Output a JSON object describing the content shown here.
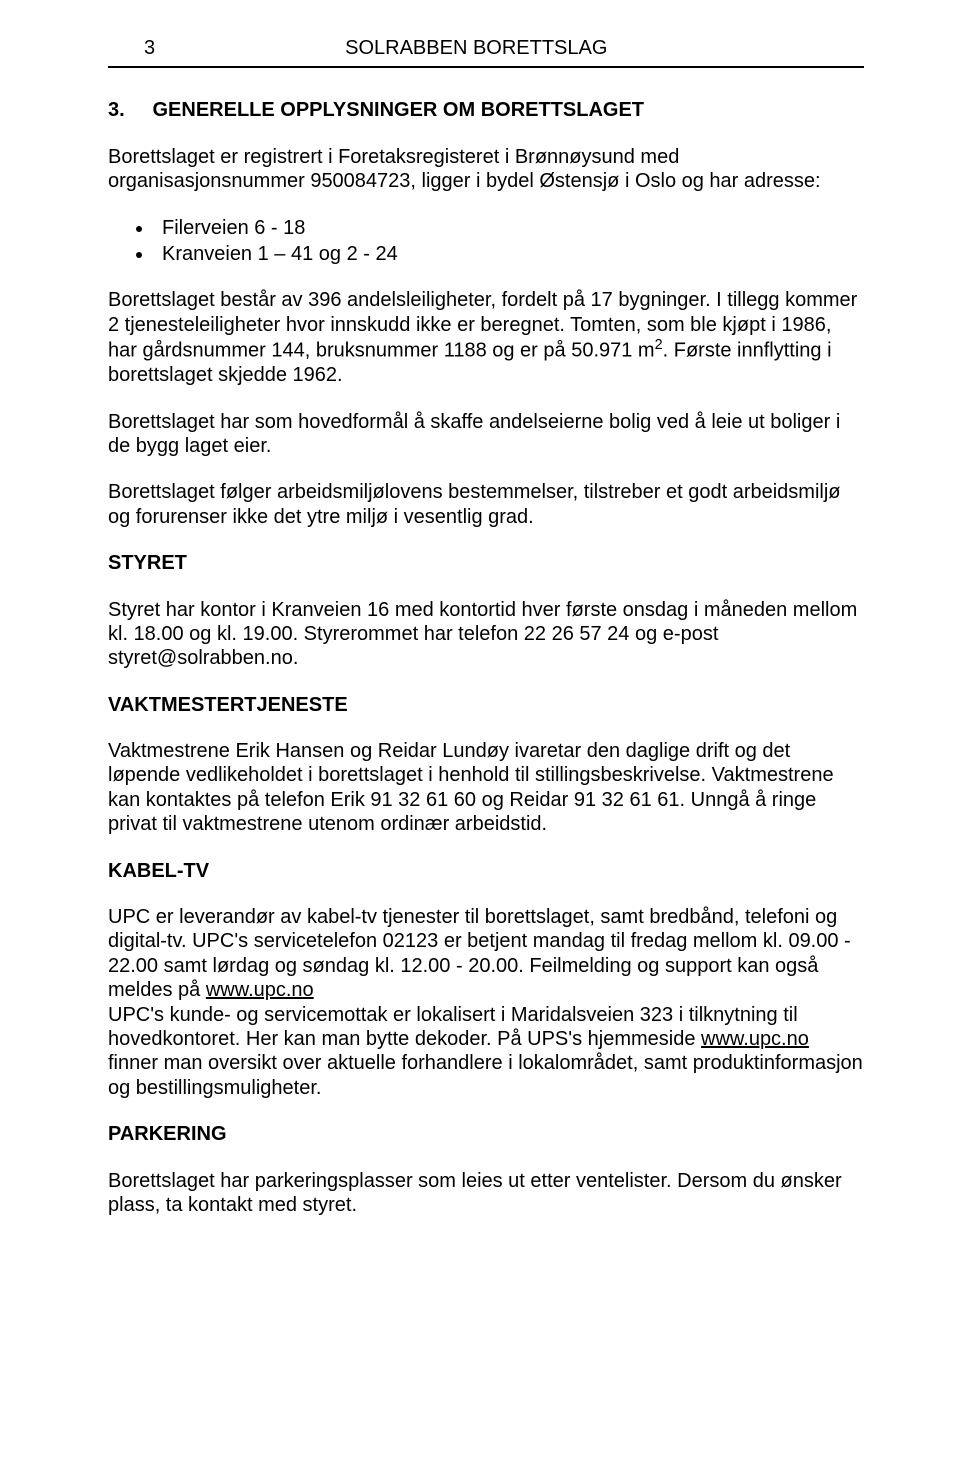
{
  "header": {
    "page_number": "3",
    "title": "SOLRABBEN BORETTSLAG"
  },
  "section": {
    "number_prefix": "3.",
    "title": "GENERELLE OPPLYSNINGER OM BORETTSLAGET"
  },
  "intro_para": "Borettslaget er registrert i Foretaksregisteret i Brønnøysund med organisasjonsnummer 950084723, ligger i bydel Østensjø i Oslo og har adresse:",
  "address_items": [
    "Filerveien 6 - 18",
    "Kranveien 1 – 41 og 2 - 24"
  ],
  "body1_a": "Borettslaget består av 396 andelsleiligheter, fordelt på 17 bygninger. I tillegg kommer 2 tjenesteleiligheter hvor innskudd ikke er beregnet. Tomten, som ble kjøpt i 1986, har gårdsnummer 144, bruksnummer 1188 og er på 50.971 m",
  "body1_sup": "2",
  "body1_b": ". Første innflytting i borettslaget skjedde 1962.",
  "body2": "Borettslaget har som hovedformål å skaffe andelseierne bolig ved å leie ut boliger i de bygg laget eier.",
  "body3": "Borettslaget følger arbeidsmiljølovens bestemmelser, tilstreber et godt arbeidsmiljø og forurenser ikke det ytre miljø i vesentlig grad.",
  "styret": {
    "heading": "STYRET",
    "para": "Styret har kontor i Kranveien 16 med kontortid hver første onsdag i måneden mellom kl. 18.00 og kl. 19.00. Styrerommet har telefon 22 26 57 24 og e-post styret@solrabben.no."
  },
  "vaktmester": {
    "heading": "VAKTMESTERTJENESTE",
    "para": "Vaktmestrene Erik Hansen og Reidar Lundøy ivaretar den daglige drift og det løpende vedlikeholdet i borettslaget i henhold til stillingsbeskrivelse. Vaktmestrene kan kontaktes på telefon Erik 91 32 61 60 og Reidar 91 32 61 61. Unngå å ringe privat til vaktmestrene utenom ordinær arbeidstid."
  },
  "kabeltv": {
    "heading": "KABEL-TV",
    "p1_a": "UPC er leverandør av kabel-tv tjenester til borettslaget, samt bredbånd, telefoni og digital-tv. UPC's servicetelefon 02123 er betjent mandag til fredag mellom kl. 09.00 - 22.00 samt lørdag og søndag kl. 12.00 - 20.00. Feilmelding og support kan også meldes på ",
    "link1": "www.upc.no",
    "p1_b": " UPC's kunde- og servicemottak er lokalisert i Maridalsveien 323 i tilknytning til hovedkontoret. Her kan man bytte dekoder. På UPS's hjemmeside ",
    "link2": "www.upc.no",
    "p1_c": " finner man  oversikt over aktuelle forhandlere i lokalområdet, samt produktinformasjon og bestillingsmuligheter."
  },
  "parkering": {
    "heading": "PARKERING",
    "para": "Borettslaget har  parkeringsplasser som leies ut etter ventelister. Dersom du ønsker plass, ta kontakt med styret."
  }
}
